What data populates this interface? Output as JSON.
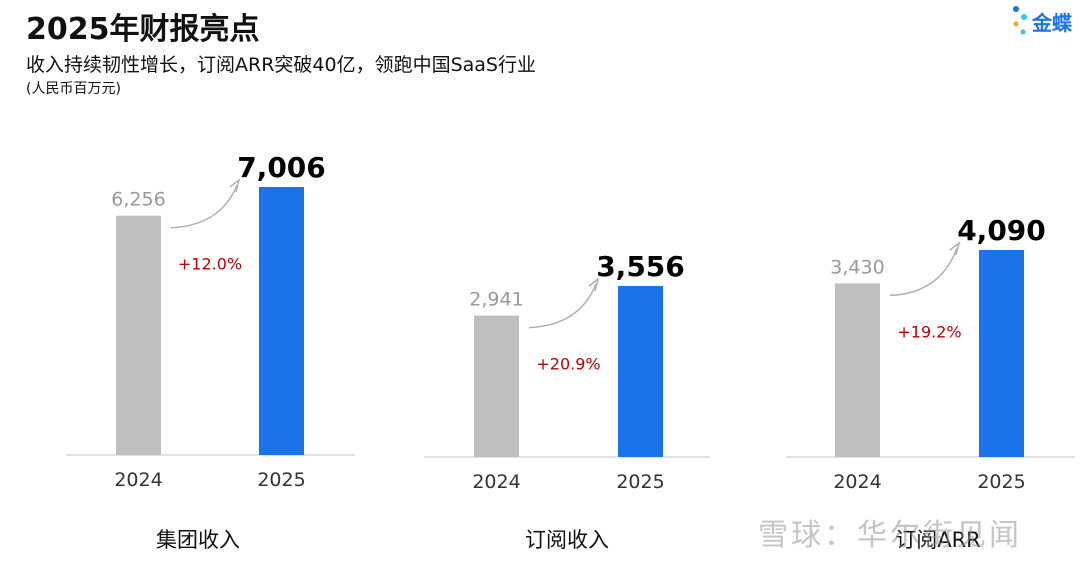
{
  "header": {
    "title": "2025年财报亮点",
    "subtitle": "收入持续韧性增长，订阅ARR突破40亿，领跑中国SaaS行业",
    "unit": "(人民币百万元)"
  },
  "logo": {
    "text": "金蝶",
    "icon": "dots-logo-icon"
  },
  "watermark": {
    "text": "雪球：华尔街见闻"
  },
  "colors": {
    "bar_2024": "#bfbfbf",
    "bar_2025": "#1a73e8",
    "growth": "#c00000",
    "label_2024": "#999999",
    "label_2025": "#000000"
  },
  "chart_data": [
    {
      "type": "bar",
      "title": "集团收入",
      "categories": [
        "2024",
        "2025"
      ],
      "values": [
        6256,
        7006
      ],
      "value_labels": [
        "6,256",
        "7,006"
      ],
      "growth": "+12.0%"
    },
    {
      "type": "bar",
      "title": "订阅收入",
      "categories": [
        "2024",
        "2025"
      ],
      "values": [
        2941,
        3556
      ],
      "value_labels": [
        "2,941",
        "3,556"
      ],
      "growth": "+20.9%"
    },
    {
      "type": "bar",
      "title": "订阅ARR",
      "categories": [
        "2024",
        "2025"
      ],
      "values": [
        3430,
        4090
      ],
      "value_labels": [
        "3,430",
        "4,090"
      ],
      "growth": "+19.2%"
    }
  ]
}
